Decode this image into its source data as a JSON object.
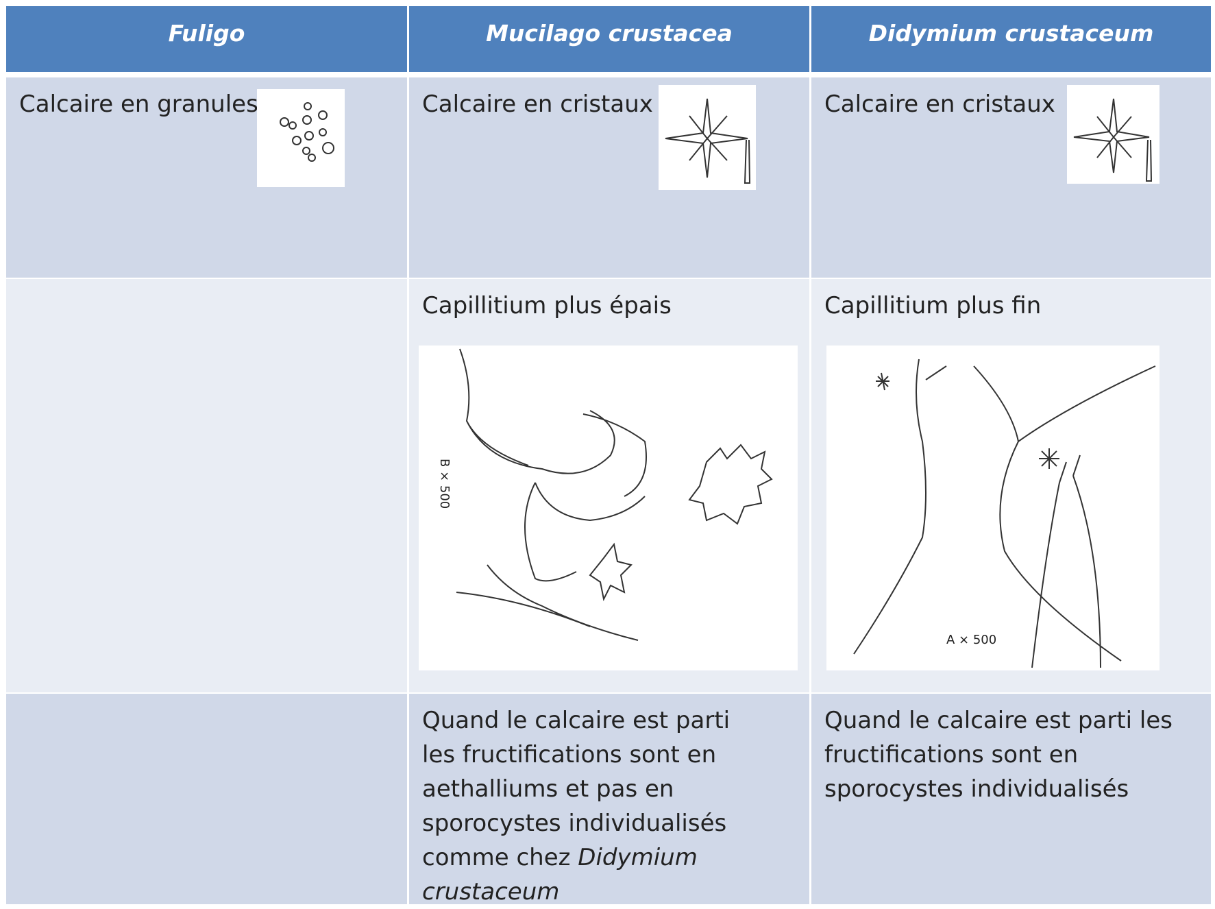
{
  "table": {
    "header": [
      "Fuligo",
      "Mucilago crustacea",
      "Didymium crustaceum"
    ],
    "rows": [
      [
        "Calcaire en granules",
        "Calcaire en cristaux",
        "Calcaire en cristaux"
      ],
      [
        null,
        {
          "text": "Capillitium plus épais",
          "figure_label": "B × 500"
        },
        {
          "text": "Capillitium plus fin",
          "figure_label": "A × 500"
        }
      ],
      [
        null,
        {
          "text": "Quand le calcaire est parti les fructifications sont en aethalliums et pas en sporocystes individualisés comme chez ",
          "italic": "Didymium crustaceum"
        },
        "Quand le calcaire est parti les fructifications sont en sporocystes individualisés"
      ]
    ]
  }
}
